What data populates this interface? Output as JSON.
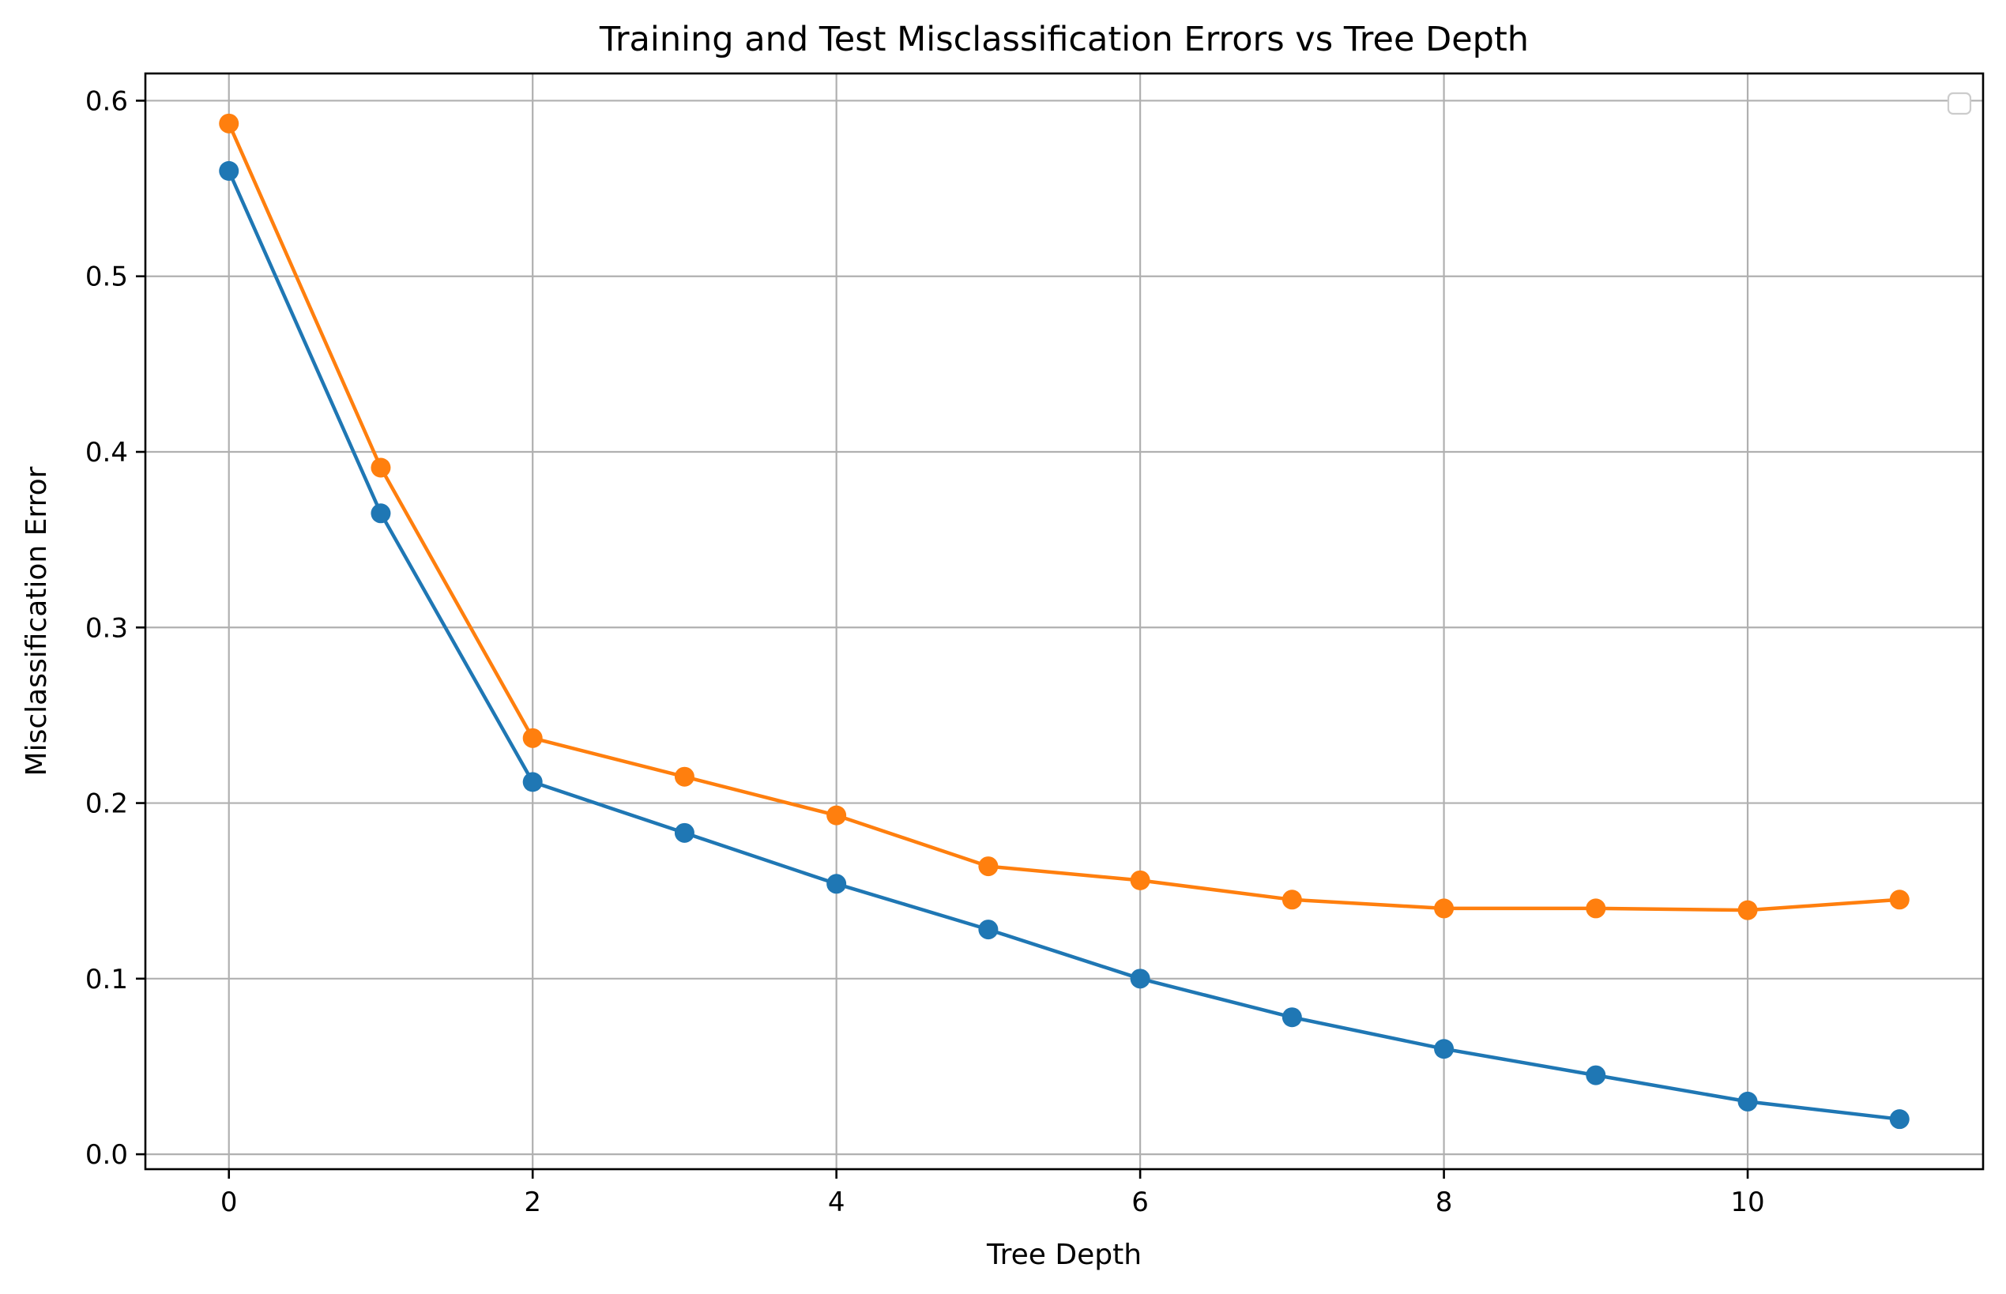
{
  "chart_data": {
    "type": "line",
    "title": "Training and Test Misclassification Errors vs Tree Depth",
    "xlabel": "Tree Depth",
    "ylabel": "Misclassification Error",
    "xlim": [
      -0.55,
      11.55
    ],
    "ylim": [
      -0.0085,
      0.6155
    ],
    "xticks": [
      0,
      2,
      4,
      6,
      8,
      10
    ],
    "xtick_labels": [
      "0",
      "2",
      "4",
      "6",
      "8",
      "10"
    ],
    "yticks": [
      0.0,
      0.1,
      0.2,
      0.3,
      0.4,
      0.5,
      0.6
    ],
    "ytick_labels": [
      "0.0",
      "0.1",
      "0.2",
      "0.3",
      "0.4",
      "0.5",
      "0.6"
    ],
    "grid": true,
    "legend": {
      "placement": "upper right",
      "entries": []
    },
    "x": [
      0,
      1,
      2,
      3,
      4,
      5,
      6,
      7,
      8,
      9,
      10,
      11
    ],
    "series": [
      {
        "color": "#1f77b4",
        "marker": "circle",
        "values": [
          0.56,
          0.365,
          0.212,
          0.183,
          0.154,
          0.128,
          0.1,
          0.078,
          0.06,
          0.045,
          0.03,
          0.02
        ]
      },
      {
        "color": "#ff7f0e",
        "marker": "circle",
        "values": [
          0.587,
          0.391,
          0.237,
          0.215,
          0.193,
          0.164,
          0.156,
          0.145,
          0.14,
          0.14,
          0.139,
          0.145
        ]
      }
    ]
  }
}
